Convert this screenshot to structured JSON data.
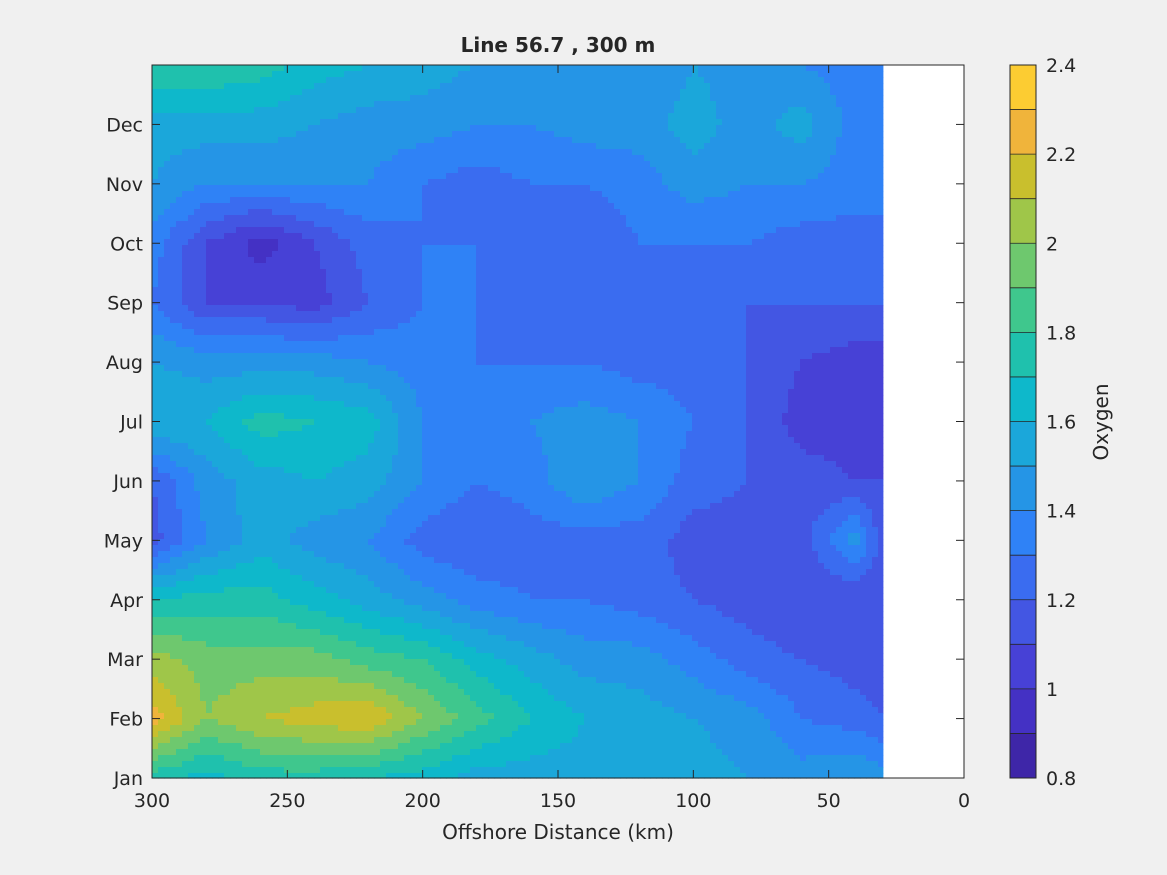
{
  "chart_data": {
    "type": "heatmap",
    "title": "Line 56.7 , 300 m",
    "xlabel": "Offshore Distance (km)",
    "ylabel": "",
    "xlim": [
      300,
      0
    ],
    "x_reversed": true,
    "x_ticks": [
      300,
      250,
      200,
      150,
      100,
      50,
      0
    ],
    "y_ticks": [
      "Jan",
      "Feb",
      "Mar",
      "Apr",
      "May",
      "Jun",
      "Jul",
      "Aug",
      "Sep",
      "Oct",
      "Nov",
      "Dec"
    ],
    "data_extent_km": [
      300,
      30
    ],
    "grid": false,
    "colorbar": {
      "label": "Oxygen",
      "limits": [
        0.8,
        2.4
      ],
      "step": 0.1,
      "tick_values": [
        0.8,
        1.0,
        1.2,
        1.4,
        1.6,
        1.8,
        2.0,
        2.2,
        2.4
      ],
      "tick_labels": [
        "0.8",
        "1",
        "1.2",
        "1.4",
        "1.6",
        "1.8",
        "2",
        "2.2",
        "2.4"
      ],
      "colors": [
        "#3e26a8",
        "#4431c4",
        "#4741d6",
        "#4356e3",
        "#3a6cf0",
        "#2f82f6",
        "#2595e6",
        "#1ba7da",
        "#0eb8cb",
        "#1fc1ad",
        "#3fc78d",
        "#6ec86e",
        "#9fc649",
        "#c9bf2d",
        "#f0b43b",
        "#fccc32"
      ]
    },
    "x_km": [
      300,
      280,
      260,
      240,
      220,
      200,
      180,
      160,
      140,
      120,
      100,
      80,
      60,
      40,
      30
    ],
    "months": [
      "Jan",
      "Feb",
      "Mar",
      "Apr",
      "May",
      "Jun",
      "Jul",
      "Aug",
      "Sep",
      "Oct",
      "Nov",
      "Dec",
      "Jan+"
    ],
    "values": [
      [
        1.75,
        1.65,
        1.75,
        1.75,
        1.7,
        1.65,
        1.55,
        1.55,
        1.55,
        1.55,
        1.55,
        1.5,
        1.45,
        1.5,
        1.45
      ],
      [
        2.25,
        2.0,
        2.1,
        2.15,
        2.2,
        2.0,
        1.85,
        1.7,
        1.6,
        1.55,
        1.5,
        1.45,
        1.3,
        1.25,
        1.2
      ],
      [
        2.05,
        1.95,
        1.95,
        1.95,
        1.85,
        1.8,
        1.65,
        1.55,
        1.45,
        1.45,
        1.35,
        1.25,
        1.2,
        1.15,
        1.15
      ],
      [
        1.7,
        1.75,
        1.75,
        1.65,
        1.55,
        1.45,
        1.35,
        1.3,
        1.3,
        1.25,
        1.2,
        1.15,
        1.1,
        1.1,
        1.1
      ],
      [
        1.15,
        1.4,
        1.55,
        1.45,
        1.4,
        1.25,
        1.2,
        1.25,
        1.25,
        1.25,
        1.15,
        1.15,
        1.15,
        1.45,
        1.15
      ],
      [
        1.2,
        1.45,
        1.55,
        1.6,
        1.55,
        1.4,
        1.3,
        1.35,
        1.5,
        1.4,
        1.25,
        1.2,
        1.15,
        1.1,
        1.1
      ],
      [
        1.6,
        1.6,
        1.75,
        1.7,
        1.65,
        1.4,
        1.3,
        1.4,
        1.45,
        1.4,
        1.3,
        1.2,
        1.05,
        1.05,
        1.05
      ],
      [
        1.5,
        1.45,
        1.45,
        1.45,
        1.4,
        1.35,
        1.3,
        1.3,
        1.3,
        1.25,
        1.25,
        1.2,
        1.1,
        1.05,
        1.05
      ],
      [
        1.3,
        1.1,
        1.1,
        1.05,
        1.2,
        1.3,
        1.3,
        1.25,
        1.2,
        1.25,
        1.25,
        1.2,
        1.2,
        1.2,
        1.2
      ],
      [
        1.35,
        1.1,
        0.95,
        1.1,
        1.25,
        1.3,
        1.3,
        1.3,
        1.2,
        1.3,
        1.3,
        1.3,
        1.25,
        1.25,
        1.25
      ],
      [
        1.5,
        1.4,
        1.4,
        1.4,
        1.4,
        1.3,
        1.25,
        1.3,
        1.3,
        1.35,
        1.45,
        1.4,
        1.4,
        1.35,
        1.35
      ],
      [
        1.55,
        1.55,
        1.55,
        1.5,
        1.45,
        1.45,
        1.4,
        1.4,
        1.45,
        1.45,
        1.55,
        1.45,
        1.55,
        1.35,
        1.35
      ],
      [
        1.8,
        1.8,
        1.75,
        1.65,
        1.6,
        1.55,
        1.5,
        1.45,
        1.45,
        1.4,
        1.5,
        1.45,
        1.4,
        1.35,
        1.35
      ]
    ]
  }
}
